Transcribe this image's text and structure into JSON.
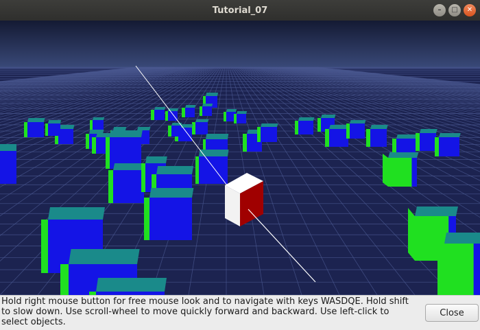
{
  "window": {
    "title": "Tutorial_07",
    "controls": [
      {
        "name": "minimize-window-button",
        "icon": "minimize-icon",
        "glyph": "–"
      },
      {
        "name": "maximize-window-button",
        "icon": "maximize-icon",
        "glyph": "□"
      },
      {
        "name": "close-window-button",
        "icon": "close-icon",
        "glyph": "✕"
      }
    ]
  },
  "status": {
    "text": "Hold right mouse button for free mouse look and to navigate with keys WASDQE. Hold shift to slow down. Use scroll-wheel to move quickly forward and backward. Use left-click to select objects."
  },
  "buttons": {
    "close_label": "Close"
  },
  "colors": {
    "sky_top": "#141a33",
    "sky_horizon": "#3a4a7a",
    "floor": "#1c2350",
    "grid_line": "#4a5890",
    "cube_front": "#1414e6",
    "cube_side": "#20e020",
    "cube_top": "#1a8a8a",
    "selected_front": "#f2f2f2",
    "selected_side": "#a00000",
    "ray": "#ffffff"
  }
}
